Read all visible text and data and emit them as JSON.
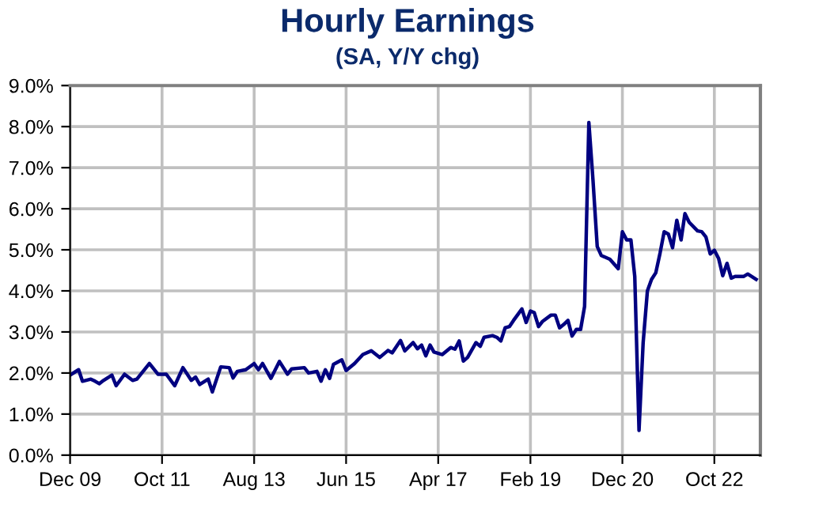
{
  "chart_data": {
    "type": "line",
    "title": "Hourly Earnings",
    "subtitle": "(SA, Y/Y chg)",
    "x": [
      "2009-12",
      "2010-02",
      "2010-03",
      "2010-05",
      "2010-06",
      "2010-07",
      "2010-08",
      "2010-10",
      "2010-11",
      "2011-01",
      "2011-03",
      "2011-04",
      "2011-07",
      "2011-09",
      "2011-11",
      "2012-01",
      "2012-03",
      "2012-05",
      "2012-06",
      "2012-07",
      "2012-09",
      "2012-10",
      "2012-12",
      "2013-02",
      "2013-03",
      "2013-04",
      "2013-06",
      "2013-08",
      "2013-09",
      "2013-10",
      "2013-12",
      "2014-02",
      "2014-04",
      "2014-05",
      "2014-08",
      "2014-09",
      "2014-11",
      "2014-12",
      "2015-01",
      "2015-02",
      "2015-03",
      "2015-05",
      "2015-06",
      "2015-08",
      "2015-10",
      "2015-12",
      "2016-02",
      "2016-04",
      "2016-05",
      "2016-07",
      "2016-08",
      "2016-10",
      "2016-11",
      "2016-12",
      "2017-01",
      "2017-02",
      "2017-03",
      "2017-05",
      "2017-07",
      "2017-08",
      "2017-09",
      "2017-10",
      "2017-11",
      "2018-01",
      "2018-02",
      "2018-03",
      "2018-05",
      "2018-06",
      "2018-07",
      "2018-08",
      "2018-09",
      "2018-10",
      "2018-12",
      "2019-01",
      "2019-02",
      "2019-03",
      "2019-04",
      "2019-05",
      "2019-07",
      "2019-08",
      "2019-09",
      "2019-10",
      "2019-11",
      "2019-12",
      "2020-01",
      "2020-02",
      "2020-03",
      "2020-04",
      "2020-05",
      "2020-06",
      "2020-07",
      "2020-09",
      "2020-11",
      "2020-12",
      "2021-01",
      "2021-02",
      "2021-03",
      "2021-04",
      "2021-05",
      "2021-06",
      "2021-07",
      "2021-08",
      "2021-09",
      "2021-10",
      "2021-11",
      "2021-12",
      "2022-01",
      "2022-02",
      "2022-03",
      "2022-04",
      "2022-06",
      "2022-07",
      "2022-08",
      "2022-09",
      "2022-10",
      "2022-11",
      "2022-12",
      "2023-01",
      "2023-02",
      "2023-03",
      "2023-05",
      "2023-06",
      "2023-08"
    ],
    "series": [
      {
        "color": "#000080",
        "values": [
          1.95,
          2.08,
          1.8,
          1.85,
          1.8,
          1.74,
          1.82,
          1.95,
          1.69,
          1.97,
          1.82,
          1.85,
          2.23,
          1.97,
          1.97,
          1.69,
          2.13,
          1.82,
          1.9,
          1.72,
          1.85,
          1.54,
          2.15,
          2.13,
          1.88,
          2.04,
          2.08,
          2.23,
          2.08,
          2.23,
          1.87,
          2.28,
          1.97,
          2.1,
          2.13,
          2.0,
          2.04,
          1.8,
          2.08,
          1.87,
          2.21,
          2.32,
          2.06,
          2.23,
          2.45,
          2.54,
          2.38,
          2.55,
          2.49,
          2.79,
          2.54,
          2.74,
          2.59,
          2.68,
          2.42,
          2.68,
          2.51,
          2.45,
          2.62,
          2.58,
          2.78,
          2.29,
          2.38,
          2.74,
          2.65,
          2.87,
          2.91,
          2.87,
          2.78,
          3.1,
          3.13,
          3.28,
          3.56,
          3.23,
          3.51,
          3.47,
          3.13,
          3.26,
          3.41,
          3.41,
          3.1,
          3.18,
          3.28,
          2.9,
          3.06,
          3.06,
          3.62,
          8.1,
          6.7,
          5.08,
          4.86,
          4.77,
          4.54,
          5.44,
          5.24,
          5.24,
          4.35,
          0.6,
          2.74,
          4.0,
          4.28,
          4.44,
          4.92,
          5.44,
          5.38,
          5.05,
          5.72,
          5.24,
          5.88,
          5.67,
          5.46,
          5.44,
          5.31,
          4.9,
          4.99,
          4.79,
          4.37,
          4.67,
          4.31,
          4.35,
          4.35,
          4.41,
          4.28
        ]
      }
    ],
    "xlim": [
      "2009-12",
      "2023-09"
    ],
    "xticks": [
      {
        "value": "2009-12",
        "label": "Dec 09"
      },
      {
        "value": "2011-10",
        "label": "Oct 11"
      },
      {
        "value": "2013-08",
        "label": "Aug 13"
      },
      {
        "value": "2015-06",
        "label": "Jun 15"
      },
      {
        "value": "2017-04",
        "label": "Apr 17"
      },
      {
        "value": "2019-02",
        "label": "Feb 19"
      },
      {
        "value": "2020-12",
        "label": "Dec 20"
      },
      {
        "value": "2022-10",
        "label": "Oct 22"
      }
    ],
    "ylim": [
      0,
      9
    ],
    "yticks": [
      {
        "value": 0,
        "label": "0.0%"
      },
      {
        "value": 1,
        "label": "1.0%"
      },
      {
        "value": 2,
        "label": "2.0%"
      },
      {
        "value": 3,
        "label": "3.0%"
      },
      {
        "value": 4,
        "label": "4.0%"
      },
      {
        "value": 5,
        "label": "5.0%"
      },
      {
        "value": 6,
        "label": "6.0%"
      },
      {
        "value": 7,
        "label": "7.0%"
      },
      {
        "value": 8,
        "label": "8.0%"
      },
      {
        "value": 9,
        "label": "9.0%"
      }
    ],
    "grid": true
  }
}
